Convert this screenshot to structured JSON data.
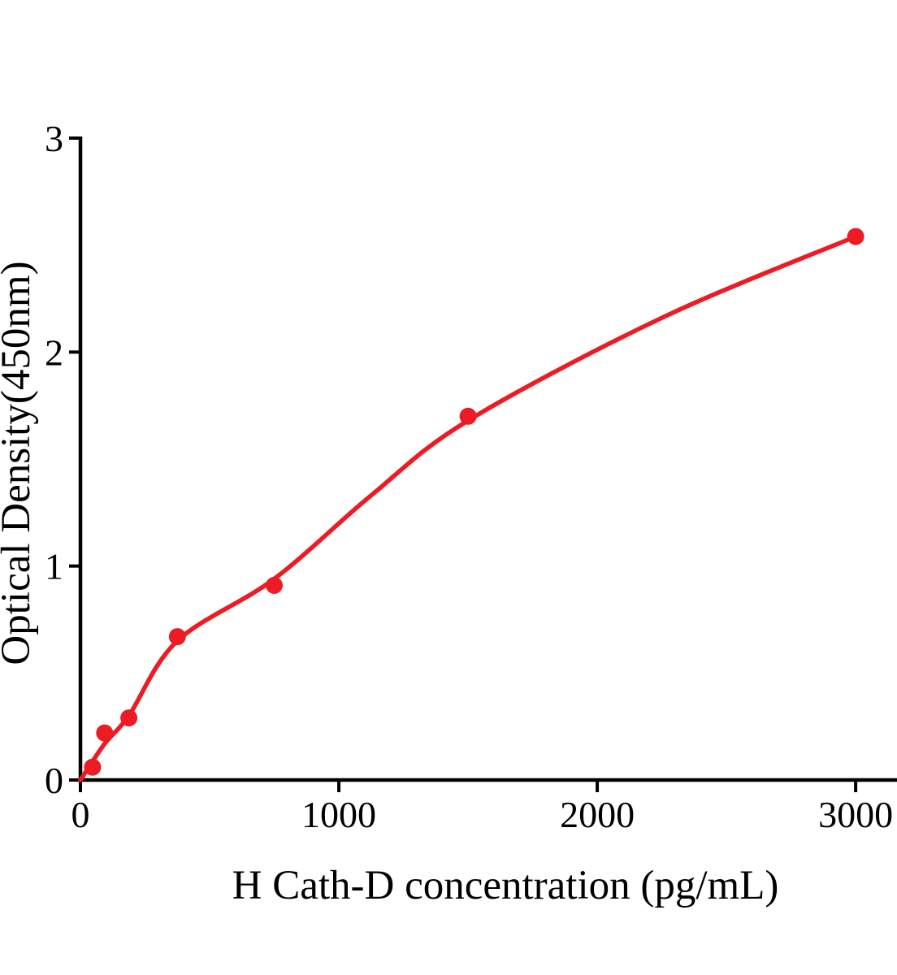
{
  "figure": {
    "background": "#ffffff",
    "axis_color": "#000000",
    "accent_red": "#EC1B24"
  },
  "chart_data": {
    "type": "scatter",
    "title": "",
    "xlabel": "H Cath-D concentration (pg/mL)",
    "ylabel": "Optical Density(450nm)",
    "xlim": [
      0,
      3160
    ],
    "ylim": [
      0,
      3
    ],
    "x_ticks": [
      0,
      1000,
      2000,
      3000
    ],
    "x_tick_labels": [
      "0",
      "1000",
      "2000",
      "3000"
    ],
    "y_ticks": [
      0,
      1,
      2,
      3
    ],
    "y_tick_labels": [
      "0",
      "1",
      "2",
      "3"
    ],
    "grid": false,
    "legend_position": "none",
    "series": [
      {
        "name": "standard-points",
        "type": "scatter",
        "color": "#EC1B24",
        "marker": "circle",
        "x": [
          46.9,
          93.8,
          187.5,
          375,
          750,
          1500,
          3000
        ],
        "y": [
          0.06,
          0.22,
          0.29,
          0.67,
          0.91,
          1.7,
          2.54
        ]
      },
      {
        "name": "fitted-curve",
        "type": "line",
        "color": "#EC1B24",
        "x": [
          0,
          94,
          187,
          375,
          750,
          1125,
          1500,
          2250,
          3000
        ],
        "y": [
          0,
          0.17,
          0.3,
          0.65,
          0.94,
          1.33,
          1.68,
          2.16,
          2.54
        ]
      }
    ]
  }
}
